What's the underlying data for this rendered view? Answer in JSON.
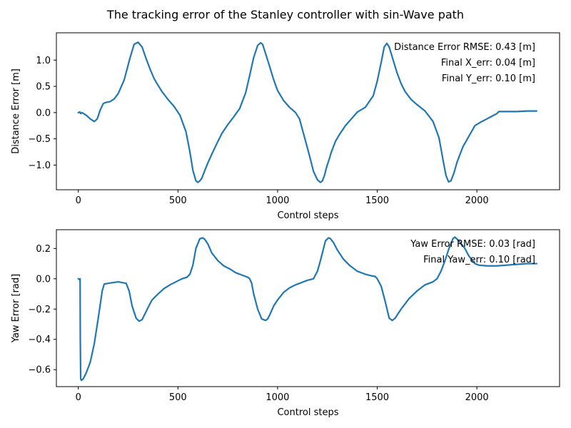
{
  "figure": {
    "title": "The tracking error of the Stanley controller with sin-Wave path"
  },
  "chart_data": [
    {
      "type": "line",
      "xlabel": "Control steps",
      "ylabel": "Distance Error [m]",
      "xlim": [
        -110,
        2415
      ],
      "ylim": [
        -1.47,
        1.52
      ],
      "xticks": [
        0,
        500,
        1000,
        1500,
        2000
      ],
      "yticks": [
        -1.0,
        -0.5,
        0.0,
        0.5,
        1.0
      ],
      "annotations": [
        "Distance Error RMSE: 0.43 [m]",
        "Final X_err: 0.04 [m]",
        "Final Y_err: 0.10 [m]"
      ],
      "color": "#1f77b4",
      "series": [
        {
          "x": [
            0,
            8,
            12,
            18,
            40,
            60,
            80,
            95,
            110,
            125,
            135,
            160,
            180,
            200,
            230,
            260,
            280,
            300,
            320,
            340,
            360,
            380,
            400,
            420,
            450,
            480,
            510,
            540,
            560,
            575,
            590,
            600,
            610,
            620,
            635,
            650,
            670,
            690,
            720,
            750,
            780,
            810,
            840,
            860,
            880,
            900,
            915,
            925,
            940,
            960,
            980,
            1000,
            1030,
            1060,
            1090,
            1110,
            1130,
            1160,
            1180,
            1200,
            1215,
            1225,
            1235,
            1245,
            1258,
            1270,
            1290,
            1310,
            1340,
            1370,
            1400,
            1440,
            1480,
            1500,
            1520,
            1535,
            1548,
            1560,
            1580,
            1600,
            1620,
            1640,
            1670,
            1700,
            1740,
            1780,
            1810,
            1830,
            1845,
            1858,
            1870,
            1885,
            1900,
            1930,
            1960,
            1990,
            2020,
            2050,
            2080,
            2090,
            2100,
            2110,
            2150,
            2200,
            2250,
            2300
          ],
          "y": [
            0.0,
            0.01,
            -0.02,
            0.0,
            -0.05,
            -0.12,
            -0.17,
            -0.12,
            0.05,
            0.17,
            0.19,
            0.21,
            0.26,
            0.36,
            0.62,
            1.05,
            1.3,
            1.34,
            1.25,
            1.03,
            0.83,
            0.65,
            0.52,
            0.4,
            0.25,
            0.12,
            -0.05,
            -0.36,
            -0.75,
            -1.1,
            -1.3,
            -1.33,
            -1.3,
            -1.25,
            -1.1,
            -0.96,
            -0.79,
            -0.63,
            -0.4,
            -0.23,
            -0.08,
            0.08,
            0.38,
            0.71,
            1.05,
            1.28,
            1.33,
            1.3,
            1.12,
            0.88,
            0.63,
            0.42,
            0.23,
            0.1,
            0.0,
            -0.12,
            -0.4,
            -0.82,
            -1.12,
            -1.28,
            -1.33,
            -1.3,
            -1.2,
            -1.05,
            -0.9,
            -0.75,
            -0.55,
            -0.42,
            -0.25,
            -0.12,
            0.01,
            0.1,
            0.32,
            0.6,
            0.96,
            1.25,
            1.32,
            1.25,
            1.0,
            0.75,
            0.55,
            0.4,
            0.25,
            0.15,
            0.03,
            -0.17,
            -0.48,
            -0.9,
            -1.2,
            -1.32,
            -1.3,
            -1.15,
            -0.95,
            -0.65,
            -0.45,
            -0.25,
            -0.18,
            -0.12,
            -0.06,
            -0.04,
            -0.02,
            0.02,
            0.02,
            0.02,
            0.03,
            0.03
          ]
        }
      ]
    },
    {
      "type": "line",
      "xlabel": "Control steps",
      "ylabel": "Yaw Error [rad]",
      "xlim": [
        -110,
        2415
      ],
      "ylim": [
        -0.712,
        0.324
      ],
      "xticks": [
        0,
        500,
        1000,
        1500,
        2000
      ],
      "yticks": [
        -0.6,
        -0.4,
        -0.2,
        0.0,
        0.2
      ],
      "annotations": [
        "Yaw Error RMSE: 0.03 [rad]",
        "Final Yaw_err: 0.10 [rad]"
      ],
      "color": "#1f77b4",
      "series": [
        {
          "x": [
            0,
            5,
            9,
            10,
            12,
            15,
            25,
            40,
            60,
            80,
            100,
            120,
            130,
            150,
            200,
            240,
            255,
            270,
            290,
            305,
            320,
            335,
            350,
            370,
            400,
            430,
            460,
            490,
            520,
            545,
            560,
            575,
            590,
            610,
            625,
            635,
            650,
            670,
            700,
            730,
            760,
            790,
            820,
            850,
            860,
            870,
            880,
            900,
            920,
            940,
            950,
            960,
            980,
            1000,
            1030,
            1060,
            1090,
            1120,
            1150,
            1180,
            1200,
            1215,
            1240,
            1255,
            1265,
            1280,
            1300,
            1330,
            1360,
            1400,
            1440,
            1470,
            1490,
            1500,
            1520,
            1540,
            1560,
            1575,
            1590,
            1620,
            1660,
            1700,
            1740,
            1780,
            1800,
            1820,
            1840,
            1860,
            1880,
            1890,
            1910,
            1940,
            1960,
            1990,
            2010,
            2050,
            2100,
            2150,
            2200,
            2250,
            2300
          ],
          "y": [
            0.0,
            -0.005,
            0.0,
            -0.4,
            -0.66,
            -0.67,
            -0.66,
            -0.62,
            -0.55,
            -0.43,
            -0.26,
            -0.08,
            -0.035,
            -0.03,
            -0.02,
            -0.03,
            -0.08,
            -0.18,
            -0.26,
            -0.28,
            -0.27,
            -0.23,
            -0.19,
            -0.14,
            -0.1,
            -0.065,
            -0.04,
            -0.02,
            0.0,
            0.01,
            0.03,
            0.09,
            0.2,
            0.265,
            0.27,
            0.26,
            0.23,
            0.17,
            0.12,
            0.085,
            0.065,
            0.04,
            0.025,
            0.01,
            0.0,
            -0.03,
            -0.1,
            -0.2,
            -0.265,
            -0.275,
            -0.265,
            -0.24,
            -0.18,
            -0.14,
            -0.09,
            -0.06,
            -0.04,
            -0.025,
            -0.01,
            0.0,
            0.05,
            0.12,
            0.25,
            0.27,
            0.265,
            0.24,
            0.19,
            0.13,
            0.09,
            0.05,
            0.03,
            0.02,
            0.015,
            0.0,
            -0.05,
            -0.15,
            -0.26,
            -0.275,
            -0.26,
            -0.2,
            -0.13,
            -0.08,
            -0.04,
            -0.02,
            0.0,
            0.05,
            0.12,
            0.2,
            0.265,
            0.275,
            0.25,
            0.2,
            0.15,
            0.1,
            0.09,
            0.085,
            0.085,
            0.09,
            0.095,
            0.1,
            0.1
          ]
        }
      ]
    }
  ]
}
